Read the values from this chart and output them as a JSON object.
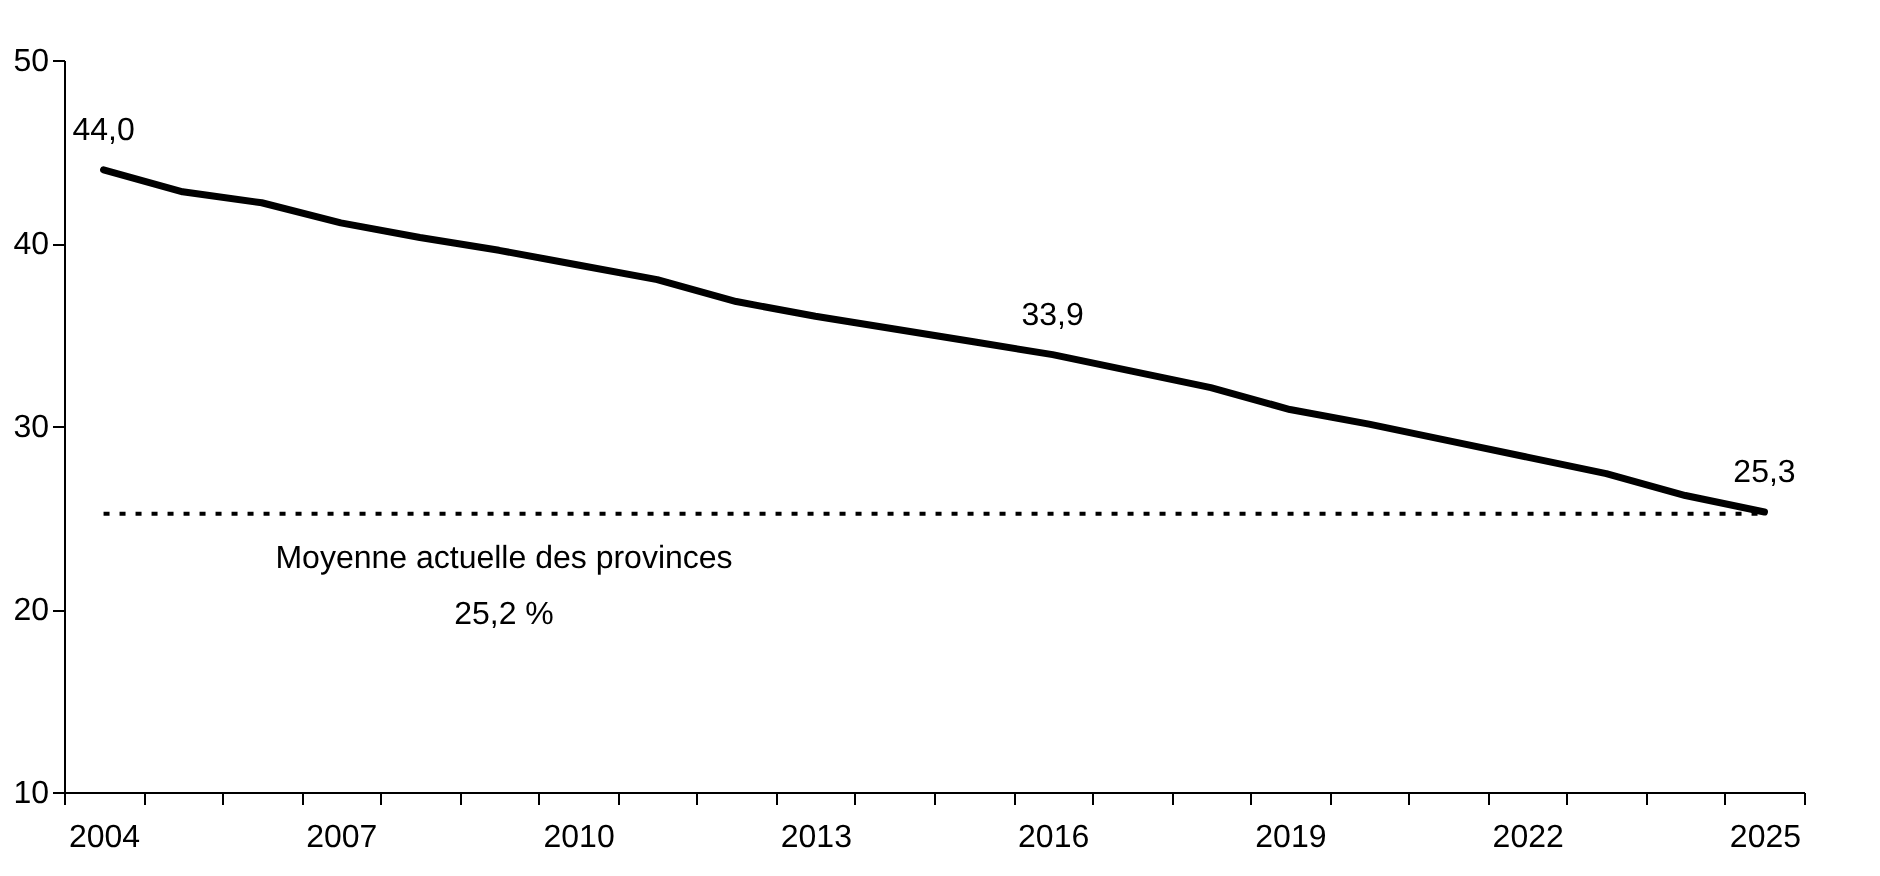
{
  "chart_data": {
    "type": "line",
    "categories": [
      "2004",
      null,
      null,
      "2007",
      null,
      null,
      "2010",
      null,
      null,
      "2013",
      null,
      null,
      "2016",
      null,
      null,
      "2019",
      null,
      null,
      "2022",
      null,
      null,
      "2025"
    ],
    "series": [
      {
        "color": "#000000",
        "values": [
          44.0,
          42.8,
          42.2,
          41.1,
          40.3,
          39.6,
          38.8,
          38.0,
          36.8,
          36.0,
          35.3,
          34.6,
          33.9,
          33.0,
          32.1,
          30.9,
          30.1,
          29.2,
          28.3,
          27.4,
          26.2,
          25.3
        ],
        "value_labels": [
          "44,0",
          null,
          null,
          null,
          null,
          null,
          null,
          null,
          null,
          null,
          null,
          null,
          "33,9",
          null,
          null,
          null,
          null,
          null,
          null,
          null,
          null,
          "25,3"
        ]
      }
    ],
    "ylim": [
      10,
      50
    ],
    "yticks": [
      10,
      20,
      30,
      40,
      50
    ],
    "ref_lines": [
      {
        "axis": "y",
        "value": 25.2,
        "label": "Moyenne actuelle des provinces\n25,2 %",
        "color": "#000000",
        "line_style": "dotted"
      }
    ],
    "grid": false,
    "marker": "none",
    "line_style": "solid"
  }
}
